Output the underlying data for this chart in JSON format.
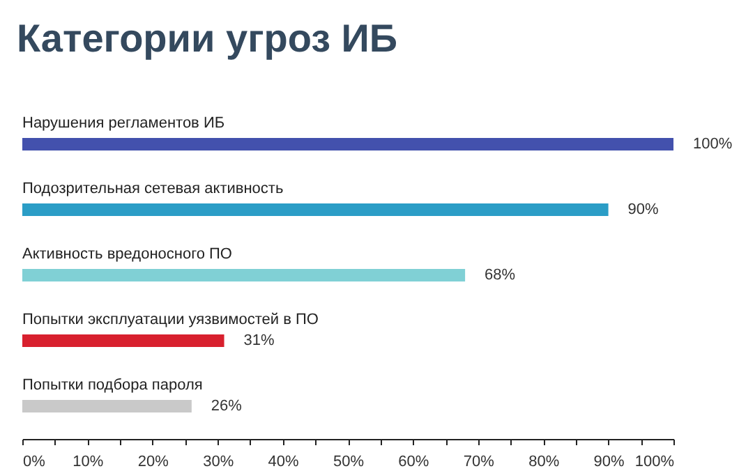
{
  "chart_data": {
    "type": "bar",
    "orientation": "horizontal",
    "title": "Категории угроз ИБ",
    "categories": [
      "Нарушения регламентов ИБ",
      "Подозрительная сетевая активность",
      "Активность вредоносного ПО",
      "Попытки эксплуатации уязвимостей в ПО",
      "Попытки подбора пароля"
    ],
    "values": [
      100,
      90,
      68,
      31,
      26
    ],
    "colors": [
      "#4351ad",
      "#2b9dc6",
      "#80d0d5",
      "#d8202e",
      "#c9c9c9"
    ],
    "value_labels": [
      "100%",
      "90%",
      "68%",
      "31%",
      "26%"
    ],
    "xlim": [
      0,
      100
    ],
    "xticks": [
      {
        "value": 0,
        "label": "0%"
      },
      {
        "value": 5,
        "label": null
      },
      {
        "value": 10,
        "label": "10%"
      },
      {
        "value": 15,
        "label": null
      },
      {
        "value": 20,
        "label": "20%"
      },
      {
        "value": 25,
        "label": null
      },
      {
        "value": 30,
        "label": "30%"
      },
      {
        "value": 35,
        "label": null
      },
      {
        "value": 40,
        "label": "40%"
      },
      {
        "value": 45,
        "label": null
      },
      {
        "value": 50,
        "label": "50%"
      },
      {
        "value": 55,
        "label": null
      },
      {
        "value": 60,
        "label": "60%"
      },
      {
        "value": 65,
        "label": null
      },
      {
        "value": 70,
        "label": "70%"
      },
      {
        "value": 75,
        "label": null
      },
      {
        "value": 80,
        "label": "80%"
      },
      {
        "value": 85,
        "label": null
      },
      {
        "value": 90,
        "label": "90%"
      },
      {
        "value": 95,
        "label": null
      },
      {
        "value": 100,
        "label": "100%"
      }
    ]
  }
}
